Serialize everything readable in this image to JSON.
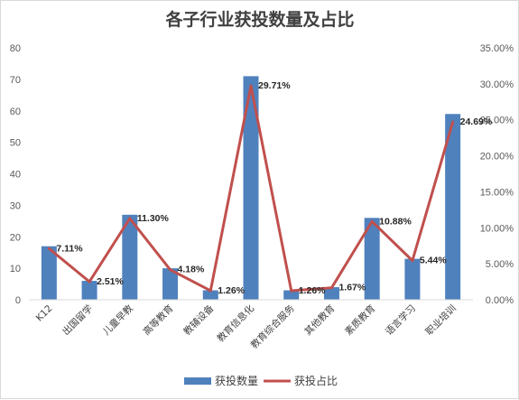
{
  "chart_data": {
    "type": "bar",
    "title": "各子行业获投数量及占比",
    "categories": [
      "K12",
      "出国留学",
      "儿童早教",
      "高等教育",
      "教辅设备",
      "教育信息化",
      "教育综合服务",
      "其他教育",
      "素质教育",
      "语言学习",
      "职业培训"
    ],
    "series": [
      {
        "name": "获投数量",
        "type": "bar",
        "axis": "left",
        "color": "#4f81bd",
        "values": [
          17,
          6,
          27,
          10,
          3,
          71,
          3,
          4,
          26,
          13,
          59
        ]
      },
      {
        "name": "获投占比",
        "type": "line",
        "axis": "right",
        "color": "#c0504d",
        "values": [
          7.11,
          2.51,
          11.3,
          4.18,
          1.26,
          29.71,
          1.26,
          1.67,
          10.88,
          5.44,
          24.69
        ],
        "labels": [
          "7.11%",
          "2.51%",
          "11.30%",
          "4.18%",
          "1.26%",
          "29.71%",
          "1.26%",
          "1.67%",
          "10.88%",
          "5.44%",
          "24.69%"
        ]
      }
    ],
    "y_left": {
      "min": 0,
      "max": 80,
      "step": 10,
      "ticks": [
        "0",
        "10",
        "20",
        "30",
        "40",
        "50",
        "60",
        "70",
        "80"
      ]
    },
    "y_right": {
      "min": 0,
      "max": 35,
      "step": 5,
      "ticks": [
        "0.00%",
        "5.00%",
        "10.00%",
        "15.00%",
        "20.00%",
        "25.00%",
        "30.00%",
        "35.00%"
      ]
    },
    "grid": false,
    "legend_position": "bottom"
  }
}
